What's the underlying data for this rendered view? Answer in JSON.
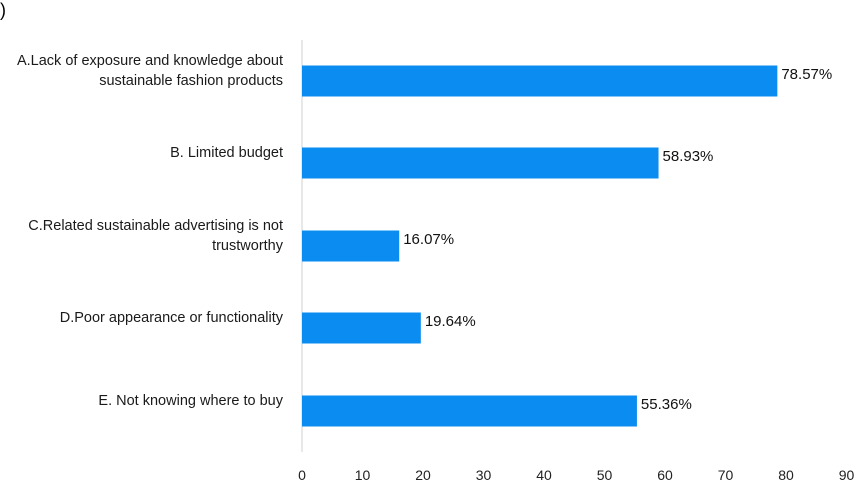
{
  "stray_text": ")",
  "chart_data": {
    "type": "bar",
    "orientation": "horizontal",
    "categories": [
      [
        "A.Lack of exposure and knowledge about",
        "sustainable fashion products"
      ],
      [
        "B. Limited budget"
      ],
      [
        "C.Related sustainable advertising is not",
        "trustworthy"
      ],
      [
        "D.Poor appearance or functionality"
      ],
      [
        "E. Not knowing where to buy"
      ]
    ],
    "values": [
      78.57,
      58.93,
      16.07,
      19.64,
      55.36
    ],
    "value_labels": [
      "78.57%",
      "58.93%",
      "16.07%",
      "19.64%",
      "55.36%"
    ],
    "xlim": [
      0,
      90
    ],
    "xticks": [
      "0",
      "10",
      "20",
      "30",
      "40",
      "50",
      "60",
      "70",
      "80",
      "90"
    ],
    "bar_color": "#0a8cf0",
    "axis_color": "#d0d0d0",
    "grid": false,
    "legend": "none"
  }
}
